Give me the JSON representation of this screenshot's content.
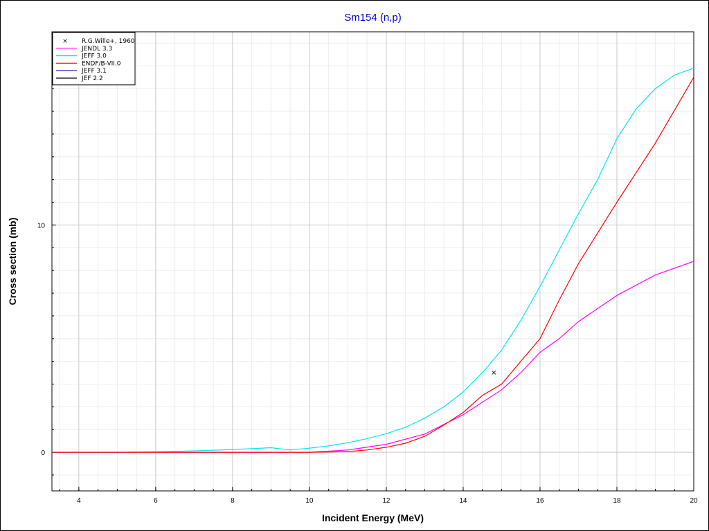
{
  "chart_data": {
    "type": "line",
    "title": "Sm154 (n,p)",
    "xlabel": "Incident Energy (MeV)",
    "ylabel": "Cross section (mb)",
    "xlim": [
      3.3,
      20
    ],
    "ylim": [
      -1.7,
      18.5
    ],
    "xticks": [
      4,
      6,
      8,
      10,
      12,
      14,
      16,
      18,
      20
    ],
    "xtick_labels": [
      "4",
      "6",
      "8",
      "10",
      "12",
      "14",
      "16",
      "18",
      "20"
    ],
    "yticks": [
      0,
      10
    ],
    "ytick_labels": [
      "0",
      "10"
    ],
    "grid": true,
    "legend_position": "top-left",
    "series": [
      {
        "name": "R.G.Wille+, 1960",
        "kind": "marker",
        "color": "#000000",
        "x": [
          14.8
        ],
        "y": [
          3.5
        ]
      },
      {
        "name": "JENDL 3.3",
        "kind": "line",
        "color": "#ff00ff",
        "x": [
          3.3,
          10,
          11,
          12,
          13,
          14,
          15,
          15.5,
          16,
          16.5,
          17,
          18,
          19,
          20
        ],
        "y": [
          0,
          0,
          0.1,
          0.35,
          0.8,
          1.65,
          2.75,
          3.5,
          4.4,
          5.0,
          5.75,
          6.9,
          7.8,
          8.4
        ]
      },
      {
        "name": "JEFF 3.0",
        "kind": "line",
        "color": "#00e5ee",
        "x": [
          3.3,
          5,
          6,
          7,
          8,
          8.5,
          9,
          9.5,
          10,
          10.5,
          11,
          11.5,
          12,
          12.5,
          13,
          13.5,
          14,
          14.5,
          15,
          15.5,
          16,
          16.5,
          17,
          17.5,
          18,
          18.5,
          19,
          19.5,
          20
        ],
        "y": [
          0,
          0,
          0.02,
          0.06,
          0.12,
          0.16,
          0.2,
          0.1,
          0.18,
          0.28,
          0.42,
          0.6,
          0.82,
          1.1,
          1.5,
          2.0,
          2.65,
          3.5,
          4.5,
          5.8,
          7.3,
          8.9,
          10.5,
          12.0,
          13.8,
          15.1,
          16.0,
          16.6,
          16.9
        ]
      },
      {
        "name": "ENDF/B-VII.0",
        "kind": "line",
        "color": "#ff0000",
        "x": [
          3.3,
          10,
          10.5,
          11,
          11.5,
          12,
          12.5,
          13,
          13.5,
          14,
          14.5,
          15,
          15.5,
          16,
          16.5,
          17,
          18,
          19,
          20
        ],
        "y": [
          0,
          0,
          0.01,
          0.03,
          0.1,
          0.22,
          0.4,
          0.7,
          1.2,
          1.75,
          2.5,
          3.0,
          4.0,
          5.0,
          6.7,
          8.3,
          11.0,
          13.6,
          16.5
        ]
      },
      {
        "name": "JEFF 3.1",
        "kind": "line",
        "color": "#00008b",
        "x": [],
        "y": []
      },
      {
        "name": "JEF 2.2",
        "kind": "line",
        "color": "#000000",
        "x": [],
        "y": []
      }
    ]
  }
}
